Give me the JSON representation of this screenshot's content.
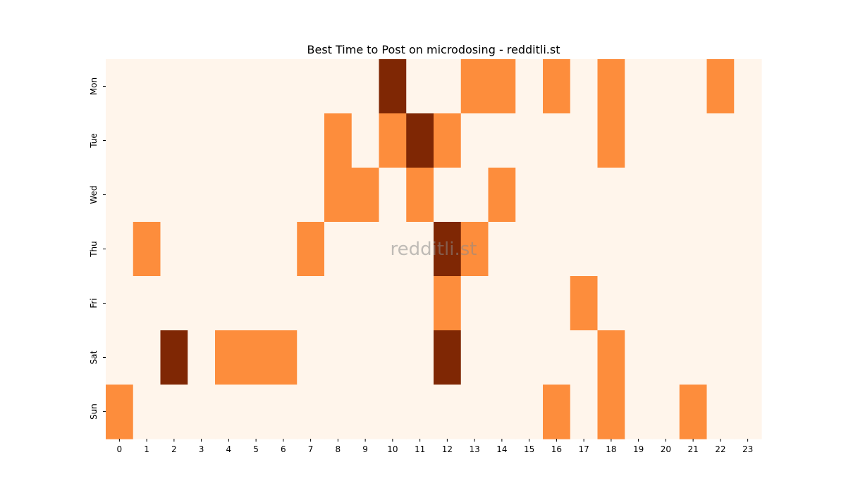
{
  "chart_data": {
    "type": "heatmap",
    "title": "Best Time to Post on microdosing - redditli.st",
    "watermark": "redditli.st",
    "xlabel": "",
    "ylabel": "",
    "x_categories": [
      "0",
      "1",
      "2",
      "3",
      "4",
      "5",
      "6",
      "7",
      "8",
      "9",
      "10",
      "11",
      "12",
      "13",
      "14",
      "15",
      "16",
      "17",
      "18",
      "19",
      "20",
      "21",
      "22",
      "23"
    ],
    "y_categories": [
      "Mon",
      "Tue",
      "Wed",
      "Thu",
      "Fri",
      "Sat",
      "Sun"
    ],
    "colorscale": {
      "0": "#fff5eb",
      "1": "#fd8d3c",
      "2": "#7f2704"
    },
    "values": [
      [
        0,
        0,
        0,
        0,
        0,
        0,
        0,
        0,
        0,
        0,
        2,
        0,
        0,
        1,
        1,
        0,
        1,
        0,
        1,
        0,
        0,
        0,
        1,
        0
      ],
      [
        0,
        0,
        0,
        0,
        0,
        0,
        0,
        0,
        1,
        0,
        1,
        2,
        1,
        0,
        0,
        0,
        0,
        0,
        1,
        0,
        0,
        0,
        0,
        0
      ],
      [
        0,
        0,
        0,
        0,
        0,
        0,
        0,
        0,
        1,
        1,
        0,
        1,
        0,
        0,
        1,
        0,
        0,
        0,
        0,
        0,
        0,
        0,
        0,
        0
      ],
      [
        0,
        1,
        0,
        0,
        0,
        0,
        0,
        1,
        0,
        0,
        0,
        0,
        2,
        1,
        0,
        0,
        0,
        0,
        0,
        0,
        0,
        0,
        0,
        0
      ],
      [
        0,
        0,
        0,
        0,
        0,
        0,
        0,
        0,
        0,
        0,
        0,
        0,
        1,
        0,
        0,
        0,
        0,
        1,
        0,
        0,
        0,
        0,
        0,
        0
      ],
      [
        0,
        0,
        2,
        0,
        1,
        1,
        1,
        0,
        0,
        0,
        0,
        0,
        2,
        0,
        0,
        0,
        0,
        0,
        1,
        0,
        0,
        0,
        0,
        0
      ],
      [
        1,
        0,
        0,
        0,
        0,
        0,
        0,
        0,
        0,
        0,
        0,
        0,
        0,
        0,
        0,
        0,
        1,
        0,
        1,
        0,
        0,
        1,
        0,
        0
      ]
    ],
    "colorbar": false,
    "grid": false
  }
}
